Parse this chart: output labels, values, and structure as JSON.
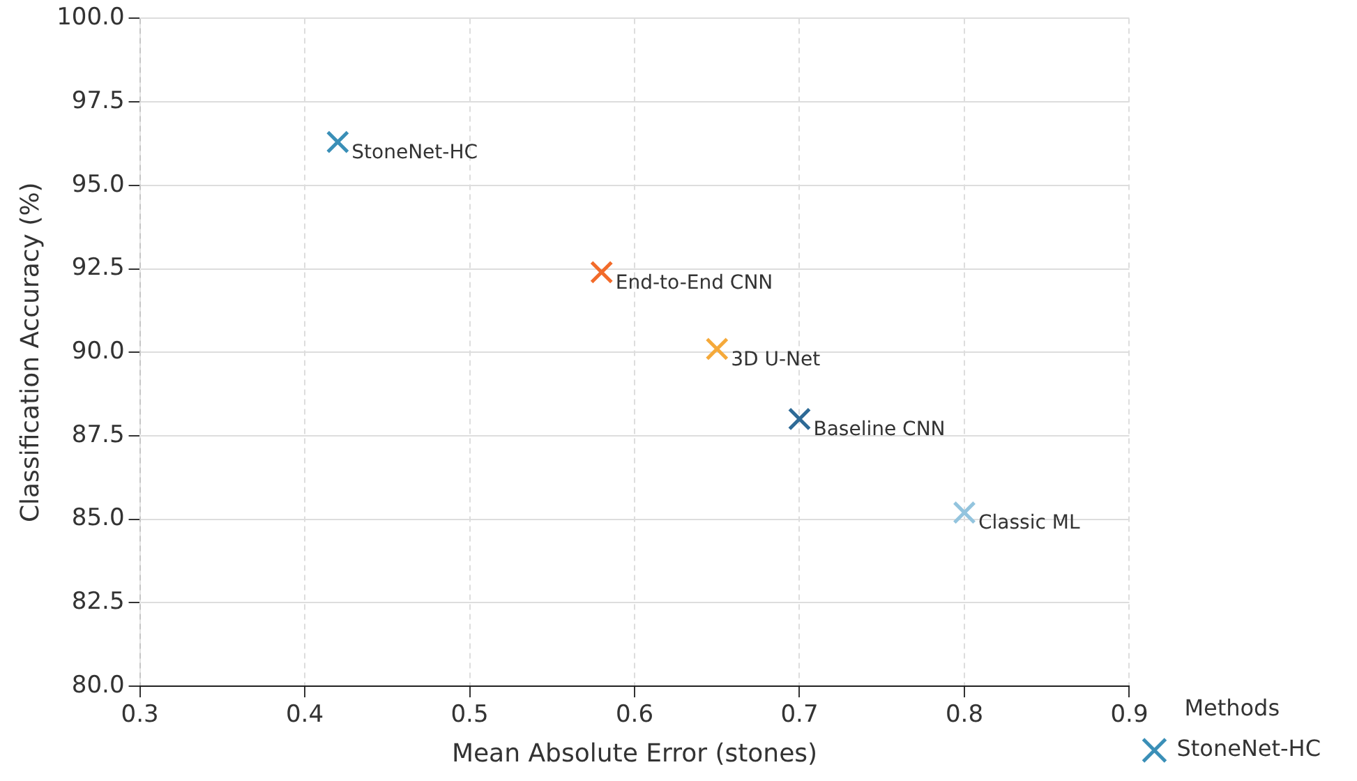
{
  "chart_data": {
    "type": "scatter",
    "xlabel": "Mean Absolute Error (stones)",
    "ylabel": "Classification Accuracy (%)",
    "legend_title": "Methods",
    "legend": "right",
    "grid": true,
    "marker": "cross",
    "xlim": [
      0.3,
      0.9
    ],
    "xticks": [
      0.3,
      0.4,
      0.5,
      0.6,
      0.7,
      0.8,
      0.9
    ],
    "ylim": [
      80,
      100
    ],
    "yticks": [
      {
        "value": 80,
        "label": "80.0"
      },
      {
        "value": 82.5,
        "label": "82.5"
      },
      {
        "value": 85,
        "label": "85.0"
      },
      {
        "value": 87.5,
        "label": "87.5"
      },
      {
        "value": 90,
        "label": "90.0"
      },
      {
        "value": 92.5,
        "label": "92.5"
      },
      {
        "value": 95,
        "label": "95.0"
      },
      {
        "value": 97.5,
        "label": "97.5"
      },
      {
        "value": 100,
        "label": "100.0"
      }
    ],
    "series": [
      {
        "name": "StoneNet-HC",
        "color": "#3a8fb7",
        "x": [
          0.42,
          0.58,
          0.65,
          0.7,
          0.8
        ],
        "values": [
          96.3,
          92.4,
          90.1,
          88.0,
          85.2
        ],
        "colors": [
          "#3a8fb7",
          "#f26b2a",
          "#f5a93a",
          "#2e6a96",
          "#93c4de"
        ]
      }
    ],
    "annotations": [
      {
        "text": "StoneNet-HC",
        "x": 0.42,
        "y": 96.3
      },
      {
        "text": "End-to-End CNN",
        "x": 0.58,
        "y": 92.4
      },
      {
        "text": "3D U-Net",
        "x": 0.65,
        "y": 90.1
      },
      {
        "text": "Baseline CNN",
        "x": 0.7,
        "y": 88.0
      },
      {
        "text": "Classic ML",
        "x": 0.8,
        "y": 85.2
      }
    ]
  }
}
